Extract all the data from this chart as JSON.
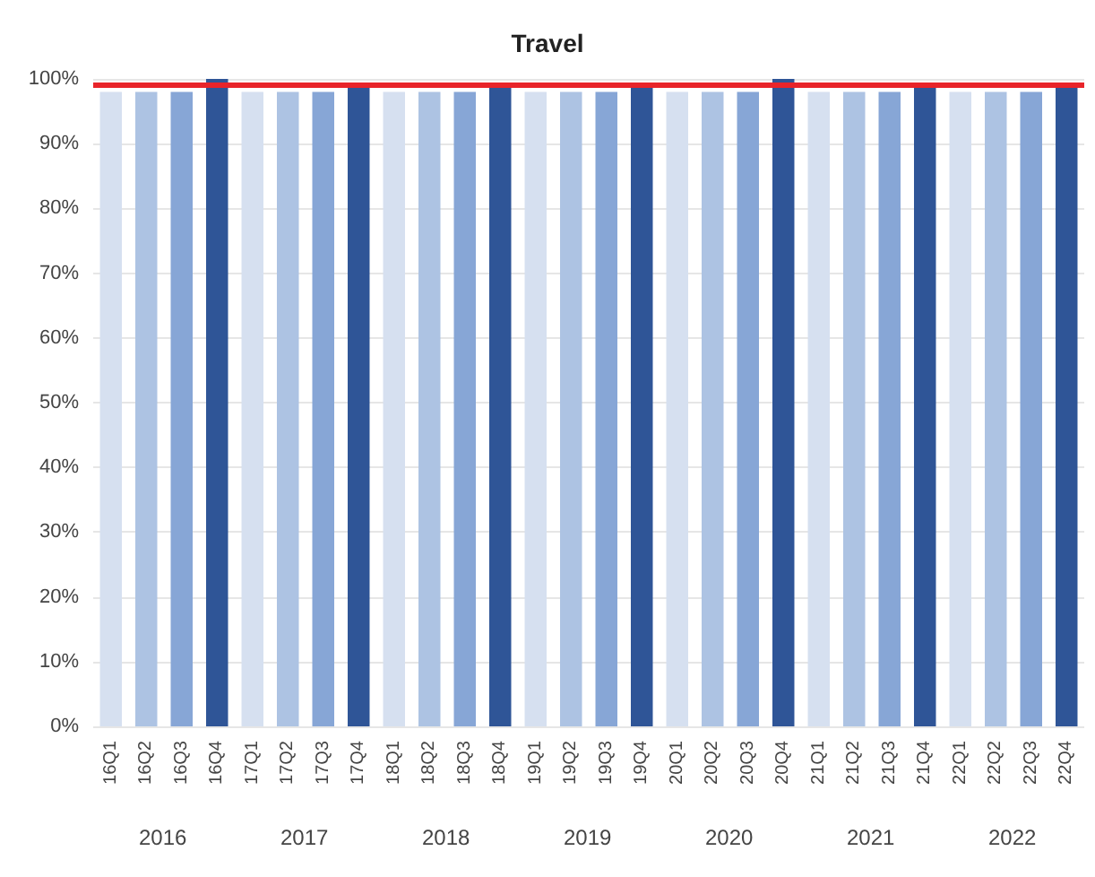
{
  "chart_data": {
    "type": "bar",
    "title": "Travel",
    "categories": [
      "16Q1",
      "16Q2",
      "16Q3",
      "16Q4",
      "17Q1",
      "17Q2",
      "17Q3",
      "17Q4",
      "18Q1",
      "18Q2",
      "18Q3",
      "18Q4",
      "19Q1",
      "19Q2",
      "19Q3",
      "19Q4",
      "20Q1",
      "20Q2",
      "20Q3",
      "20Q4",
      "21Q1",
      "21Q2",
      "21Q3",
      "21Q4",
      "22Q1",
      "22Q2",
      "22Q3",
      "22Q4"
    ],
    "values": [
      98,
      98,
      98,
      100,
      98,
      98,
      98,
      99,
      98,
      98,
      98,
      99,
      98,
      98,
      98,
      99,
      98,
      98,
      98,
      100,
      98,
      98,
      98,
      99,
      98,
      98,
      98,
      99
    ],
    "colors": [
      "#d6e0f0",
      "#adc3e3",
      "#87a6d6",
      "#2f5597",
      "#d6e0f0",
      "#adc3e3",
      "#87a6d6",
      "#2f5597",
      "#d6e0f0",
      "#adc3e3",
      "#87a6d6",
      "#2f5597",
      "#d6e0f0",
      "#adc3e3",
      "#87a6d6",
      "#2f5597",
      "#d6e0f0",
      "#adc3e3",
      "#87a6d6",
      "#2f5597",
      "#d6e0f0",
      "#adc3e3",
      "#87a6d6",
      "#2f5597",
      "#d6e0f0",
      "#adc3e3",
      "#87a6d6",
      "#2f5597"
    ],
    "ylim": [
      0,
      100
    ],
    "yticks": [
      {
        "value": 0,
        "label": "0%"
      },
      {
        "value": 10,
        "label": "10%"
      },
      {
        "value": 20,
        "label": "20%"
      },
      {
        "value": 30,
        "label": "30%"
      },
      {
        "value": 40,
        "label": "40%"
      },
      {
        "value": 50,
        "label": "50%"
      },
      {
        "value": 60,
        "label": "60%"
      },
      {
        "value": 70,
        "label": "70%"
      },
      {
        "value": 80,
        "label": "80%"
      },
      {
        "value": 90,
        "label": "90%"
      },
      {
        "value": 100,
        "label": "100%"
      }
    ],
    "grid": "y",
    "ref_lines": [
      {
        "axis": "y",
        "value": 99,
        "label": null,
        "color": "#e8242a"
      }
    ],
    "annotations": [
      "2016",
      "2017",
      "2018",
      "2019",
      "2020",
      "2021",
      "2022"
    ]
  }
}
